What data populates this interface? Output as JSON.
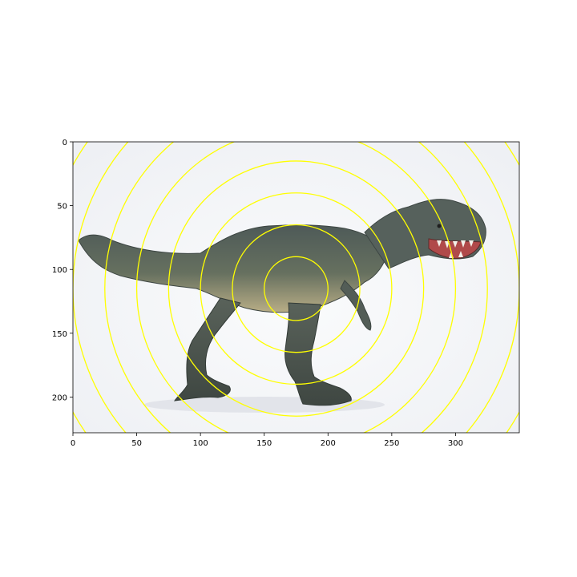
{
  "image": {
    "description_icon": "tyrannosaurus-rex-figurine",
    "subject_colors": {
      "skin": "#56605a",
      "belly": "#b9ad88",
      "mouth": "#b04a4a",
      "teeth": "#f3f1ea"
    },
    "background": "#f3f4f7"
  },
  "overlay": {
    "type": "concentric-circles",
    "color": "#ffff00",
    "center": {
      "x": 175,
      "y": 115
    },
    "radii": [
      25,
      50,
      75,
      100,
      125,
      150,
      175,
      200
    ]
  },
  "axes": {
    "xlim": [
      0,
      350
    ],
    "ylim": [
      0,
      228
    ],
    "x_ticks": [
      {
        "value": 0,
        "label": "0"
      },
      {
        "value": 50,
        "label": "50"
      },
      {
        "value": 100,
        "label": "100"
      },
      {
        "value": 150,
        "label": "150"
      },
      {
        "value": 200,
        "label": "200"
      },
      {
        "value": 250,
        "label": "250"
      },
      {
        "value": 300,
        "label": "300"
      }
    ],
    "y_ticks": [
      {
        "value": 0,
        "label": "0"
      },
      {
        "value": 50,
        "label": "50"
      },
      {
        "value": 100,
        "label": "100"
      },
      {
        "value": 150,
        "label": "150"
      },
      {
        "value": 200,
        "label": "200"
      }
    ],
    "y_inverted": true
  }
}
